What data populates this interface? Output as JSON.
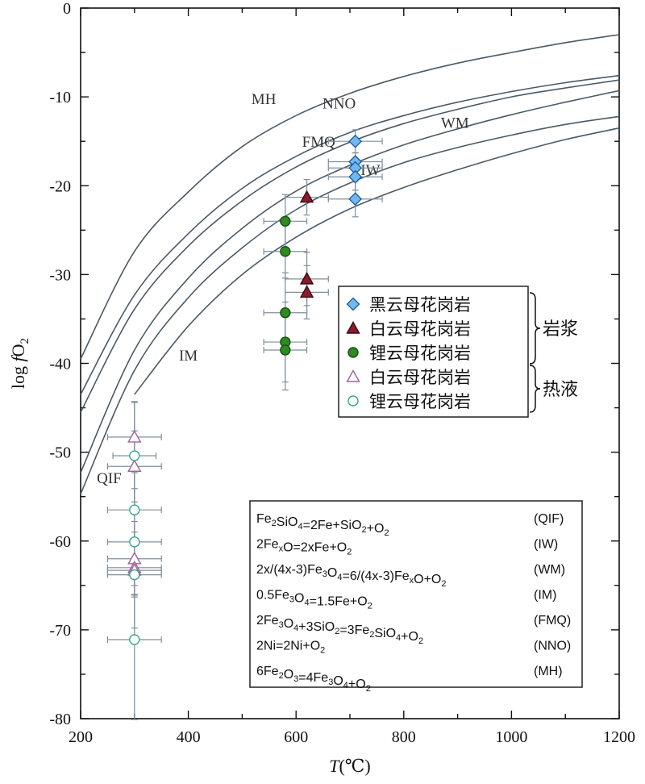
{
  "chart_data": {
    "type": "scatter",
    "xlabel_var": "T",
    "xlabel_unit": "(℃)",
    "ylabel": "log fO2",
    "xlim": [
      200,
      1200
    ],
    "ylim": [
      -80,
      0
    ],
    "x_ticks": [
      "200",
      "400",
      "600",
      "800",
      "1000",
      "1200"
    ],
    "y_ticks": [
      "0",
      "-10",
      "-20",
      "-30",
      "-40",
      "-50",
      "-60",
      "-70",
      "-80"
    ],
    "buffers": [
      {
        "name": "MH",
        "points": [
          [
            200,
            -39.5
          ],
          [
            300,
            -27.4
          ],
          [
            400,
            -20.7
          ],
          [
            500,
            -15.6
          ],
          [
            600,
            -12.1
          ],
          [
            700,
            -9.6
          ],
          [
            800,
            -7.7
          ],
          [
            900,
            -6.2
          ],
          [
            1000,
            -5.0
          ],
          [
            1100,
            -3.9
          ],
          [
            1200,
            -3.0
          ]
        ]
      },
      {
        "name": "NNO",
        "points": [
          [
            200,
            -43.5
          ],
          [
            300,
            -32.3
          ],
          [
            400,
            -25.4
          ],
          [
            500,
            -20.3
          ],
          [
            600,
            -16.7
          ],
          [
            700,
            -14.0
          ],
          [
            800,
            -12.1
          ],
          [
            900,
            -10.6
          ],
          [
            1000,
            -9.4
          ],
          [
            1100,
            -8.4
          ],
          [
            1200,
            -7.6
          ]
        ]
      },
      {
        "name": "FMQ",
        "points": [
          [
            200,
            -45.5
          ],
          [
            300,
            -33.9
          ],
          [
            400,
            -26.8
          ],
          [
            500,
            -21.7
          ],
          [
            600,
            -17.9
          ],
          [
            700,
            -15.1
          ],
          [
            800,
            -13.0
          ],
          [
            900,
            -11.4
          ],
          [
            1000,
            -10.0
          ],
          [
            1100,
            -9.0
          ],
          [
            1200,
            -8.1
          ]
        ]
      },
      {
        "name": "WM",
        "points": [
          [
            200,
            -52.3
          ],
          [
            300,
            -38.5
          ],
          [
            400,
            -30.4
          ],
          [
            500,
            -24.8
          ],
          [
            600,
            -20.6
          ],
          [
            700,
            -17.7
          ],
          [
            800,
            -15.4
          ],
          [
            900,
            -13.6
          ],
          [
            1000,
            -12.0
          ],
          [
            1100,
            -10.6
          ],
          [
            1200,
            -9.3
          ]
        ]
      },
      {
        "name": "IW",
        "points": [
          [
            200,
            -54.7
          ],
          [
            300,
            -40.8
          ],
          [
            400,
            -32.6
          ],
          [
            500,
            -27.0
          ],
          [
            600,
            -22.7
          ],
          [
            700,
            -19.7
          ],
          [
            800,
            -17.4
          ],
          [
            900,
            -15.7
          ],
          [
            1000,
            -14.3
          ],
          [
            1100,
            -13.1
          ],
          [
            1200,
            -12.2
          ]
        ]
      },
      {
        "name": "QIF_IM",
        "points": [
          [
            300,
            -43.5
          ],
          [
            400,
            -35.8
          ],
          [
            500,
            -30.0
          ],
          [
            600,
            -25.8
          ],
          [
            700,
            -22.6
          ],
          [
            800,
            -20.2
          ],
          [
            900,
            -18.2
          ],
          [
            1000,
            -16.4
          ],
          [
            1100,
            -14.8
          ],
          [
            1200,
            -13.5
          ]
        ]
      }
    ],
    "buffer_labels": [
      {
        "text": "MH",
        "x": 540,
        "y": -10.8
      },
      {
        "text": "NNO",
        "x": 680,
        "y": -11.3
      },
      {
        "text": "FMQ",
        "x": 642,
        "y": -15.6
      },
      {
        "text": "WM",
        "x": 895,
        "y": -13.5
      },
      {
        "text": "IW",
        "x": 738,
        "y": -18.8
      },
      {
        "text": "IM",
        "x": 400,
        "y": -39.7
      },
      {
        "text": "QIF",
        "x": 253,
        "y": -53.5
      }
    ],
    "series": [
      {
        "name": "黑云母花岗岩",
        "group": "岩浆",
        "marker": "diamond",
        "fill": "#6fb8f0",
        "stroke": "#1a5a9a",
        "points": [
          {
            "x": 710,
            "y": -15.0,
            "xerr": 50,
            "yerr": 1.3
          },
          {
            "x": 710,
            "y": -17.3,
            "xerr": 50,
            "yerr": 1.0
          },
          {
            "x": 710,
            "y": -18.0,
            "xerr": 50,
            "yerr": 1.0
          },
          {
            "x": 710,
            "y": -19.0,
            "xerr": 50,
            "yerr": 1.5
          },
          {
            "x": 710,
            "y": -21.5,
            "xerr": 50,
            "yerr": 2.0
          }
        ]
      },
      {
        "name": "白云母花岗岩",
        "group": "岩浆",
        "marker": "triangle",
        "fill": "#8a1c2c",
        "stroke": "#3a0810",
        "points": [
          {
            "x": 620,
            "y": -21.3,
            "xerr": 40,
            "yerr": 2.0
          },
          {
            "x": 620,
            "y": -30.5,
            "xerr": 40,
            "yerr": 3.0
          },
          {
            "x": 620,
            "y": -32.0,
            "xerr": 40,
            "yerr": 3.0
          }
        ]
      },
      {
        "name": "锂云母花岗岩",
        "group": "岩浆",
        "marker": "circle",
        "fill": "#2e8a22",
        "stroke": "#155010",
        "points": [
          {
            "x": 580,
            "y": -24.0,
            "xerr": 40,
            "yerr": 3.0
          },
          {
            "x": 580,
            "y": -27.4,
            "xerr": 40,
            "yerr": 3.0
          },
          {
            "x": 580,
            "y": -34.3,
            "xerr": 40,
            "yerr": 4.5
          },
          {
            "x": 580,
            "y": -37.6,
            "xerr": 40,
            "yerr": 4.5
          },
          {
            "x": 580,
            "y": -38.5,
            "xerr": 40,
            "yerr": 4.5
          }
        ]
      },
      {
        "name": "白云母花岗岩",
        "group": "热液",
        "marker": "triangle",
        "fill": "#ffffff",
        "stroke": "#a0609a",
        "points": [
          {
            "x": 300,
            "y": -48.3,
            "xerr": 50,
            "yerr": 4.0
          },
          {
            "x": 300,
            "y": -51.6,
            "xerr": 50,
            "yerr": 4.0
          },
          {
            "x": 300,
            "y": -62.0,
            "xerr": 50,
            "yerr": 3.0
          },
          {
            "x": 300,
            "y": -63.0,
            "xerr": 50,
            "yerr": 3.0
          },
          {
            "x": 300,
            "y": -63.3,
            "xerr": 50,
            "yerr": 3.0
          }
        ]
      },
      {
        "name": "锂云母花岗岩",
        "group": "热液",
        "marker": "circle",
        "fill": "#ffffff",
        "stroke": "#3aa88a",
        "points": [
          {
            "x": 300,
            "y": -50.4,
            "xerr": 40,
            "yerr": 6.0
          },
          {
            "x": 300,
            "y": -56.5,
            "xerr": 50,
            "yerr": 6.0
          },
          {
            "x": 300,
            "y": -60.1,
            "xerr": 50,
            "yerr": 6.0
          },
          {
            "x": 300,
            "y": -63.8,
            "xerr": 50,
            "yerr": 6.0
          },
          {
            "x": 300,
            "y": -71.1,
            "xerr": 50,
            "yerr": 9.0
          }
        ]
      }
    ],
    "legend": {
      "placement": "center-right",
      "items": [
        "黑云母花岗岩",
        "白云母花岗岩",
        "锂云母花岗岩",
        "白云母花岗岩",
        "锂云母花岗岩"
      ],
      "groups": [
        {
          "label": "岩浆",
          "items": [
            0,
            1,
            2
          ]
        },
        {
          "label": "热液",
          "items": [
            3,
            4
          ]
        }
      ]
    },
    "reactions": [
      {
        "eq": [
          [
            "Fe"
          ],
          [
            "2",
            "sub"
          ],
          [
            "SiO"
          ],
          [
            "4",
            "sub"
          ],
          [
            "=2Fe+SiO"
          ],
          [
            "2",
            "sub"
          ],
          [
            "+O"
          ],
          [
            "2",
            "sub"
          ]
        ],
        "code": "(QIF)"
      },
      {
        "eq": [
          [
            "2Fe"
          ],
          [
            "x",
            "sub"
          ],
          [
            "O=2xFe+O"
          ],
          [
            "2",
            "sub"
          ]
        ],
        "code": "(IW)"
      },
      {
        "eq": [
          [
            "2x/(4x-3)Fe"
          ],
          [
            "3",
            "sub"
          ],
          [
            "O"
          ],
          [
            "4",
            "sub"
          ],
          [
            "=6/(4x-3)Fe"
          ],
          [
            "x",
            "sub"
          ],
          [
            "O+O"
          ],
          [
            "2",
            "sub"
          ]
        ],
        "code": "(WM)"
      },
      {
        "eq": [
          [
            "0.5Fe"
          ],
          [
            "3",
            "sub"
          ],
          [
            "O"
          ],
          [
            "4",
            "sub"
          ],
          [
            "=1.5Fe+O"
          ],
          [
            "2",
            "sub"
          ]
        ],
        "code": "(IM)"
      },
      {
        "eq": [
          [
            "2Fe"
          ],
          [
            "3",
            "sub"
          ],
          [
            "O"
          ],
          [
            "4",
            "sub"
          ],
          [
            "+3SiO"
          ],
          [
            "2",
            "sub"
          ],
          [
            "=3Fe"
          ],
          [
            "2",
            "sub"
          ],
          [
            "SiO"
          ],
          [
            "4",
            "sub"
          ],
          [
            "+O"
          ],
          [
            "2",
            "sub"
          ]
        ],
        "code": "(FMQ)"
      },
      {
        "eq": [
          [
            "2Ni=2Ni+O"
          ],
          [
            "2",
            "sub"
          ]
        ],
        "code": "(NNO)"
      },
      {
        "eq": [
          [
            "6Fe"
          ],
          [
            "2",
            "sub"
          ],
          [
            "O"
          ],
          [
            "3",
            "sub"
          ],
          [
            "=4Fe"
          ],
          [
            "3",
            "sub"
          ],
          [
            "O"
          ],
          [
            "4",
            "sub"
          ],
          [
            "+O"
          ],
          [
            "2",
            "sub"
          ]
        ],
        "code": "(MH)"
      }
    ],
    "colors": {
      "axis": "#111111",
      "buffer": "#4a5a68",
      "errorbar": "#7f8f9c"
    },
    "grid": false
  }
}
